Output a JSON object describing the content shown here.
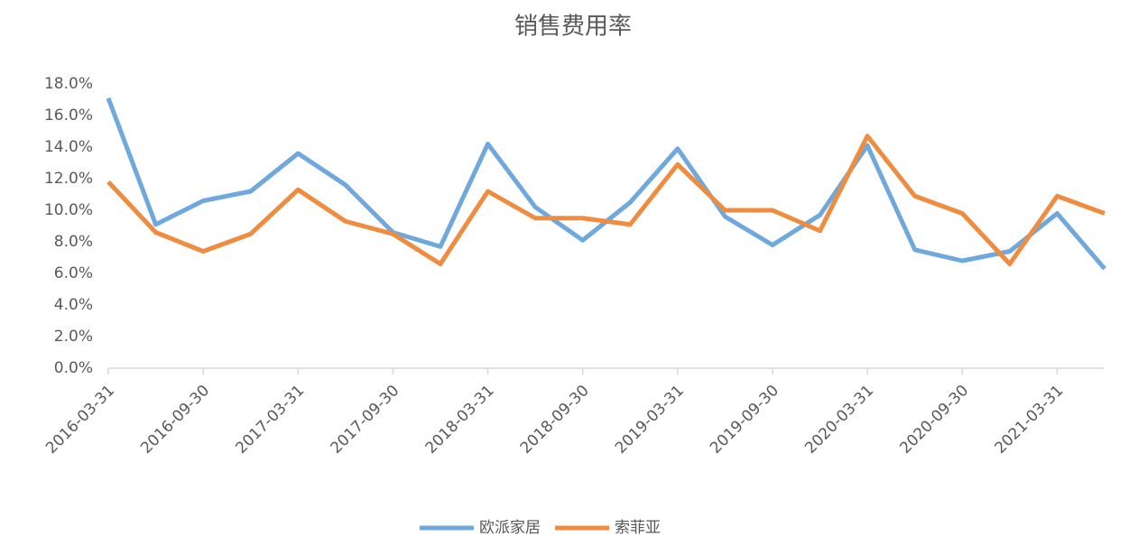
{
  "chart_data": {
    "type": "line",
    "title": "销售费用率",
    "categories": [
      "2016-03-31",
      null,
      "2016-09-30",
      null,
      "2017-03-31",
      null,
      "2017-09-30",
      null,
      "2018-03-31",
      null,
      "2018-09-30",
      null,
      "2019-03-31",
      null,
      "2019-09-30",
      null,
      "2020-03-31",
      null,
      "2020-09-30",
      null,
      "2021-03-31",
      null
    ],
    "series": [
      {
        "name": "欧派家居",
        "color": "#6fa8dc",
        "values": [
          17.1,
          9.1,
          10.6,
          11.2,
          13.6,
          11.6,
          8.6,
          7.7,
          14.2,
          10.2,
          8.1,
          10.5,
          13.9,
          9.6,
          7.8,
          9.7,
          14.1,
          7.5,
          6.8,
          7.4,
          9.8,
          6.3
        ]
      },
      {
        "name": "索菲亚",
        "color": "#f08c40",
        "values": [
          11.8,
          8.6,
          7.4,
          8.5,
          11.3,
          9.3,
          8.5,
          6.6,
          11.2,
          9.5,
          9.5,
          9.1,
          12.9,
          10.0,
          10.0,
          8.7,
          14.7,
          10.9,
          9.8,
          6.6,
          10.9,
          9.8
        ]
      }
    ],
    "ylim": [
      0,
      18
    ],
    "yticks": [
      {
        "value": 0,
        "label": "0.0%"
      },
      {
        "value": 2,
        "label": "2.0%"
      },
      {
        "value": 4,
        "label": "4.0%"
      },
      {
        "value": 6,
        "label": "6.0%"
      },
      {
        "value": 8,
        "label": "8.0%"
      },
      {
        "value": 10,
        "label": "10.0%"
      },
      {
        "value": 12,
        "label": "12.0%"
      },
      {
        "value": 14,
        "label": "14.0%"
      },
      {
        "value": 16,
        "label": "16.0%"
      },
      {
        "value": 18,
        "label": "18.0%"
      }
    ],
    "grid": false,
    "legend": "bottom"
  }
}
